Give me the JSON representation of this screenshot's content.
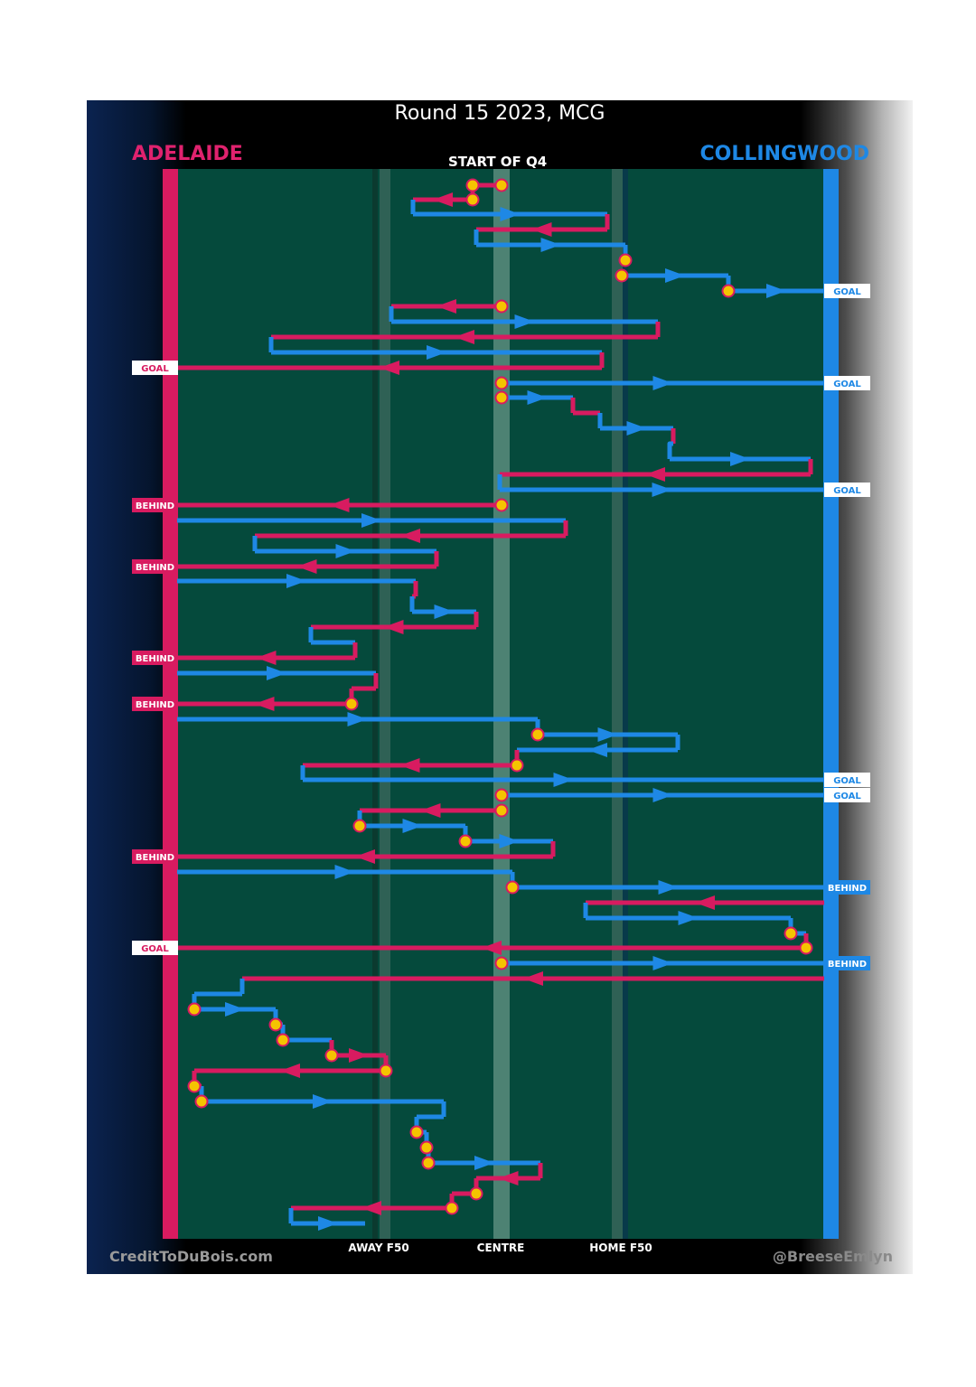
{
  "title": "Round 15 2023, MCG",
  "left_team": "ADELAIDE",
  "right_team": "COLLINGWOOD",
  "start_label": "START OF Q4",
  "footer_left": "CreditToDuBois.com",
  "footer_right": "@BreeseEmlyn",
  "zones": {
    "away": "AWAY F50",
    "centre": "CENTRE",
    "home": "HOME F50"
  },
  "colors": {
    "adelaide": "#d81b60",
    "collingwood": "#1e88e5",
    "field": "#054a3c",
    "marker": "#f5c400"
  },
  "chart_data": {
    "type": "chain-flow",
    "x_axis": "field position",
    "segments": [
      {
        "team": "adelaide",
        "x1": 555,
        "x2": 523,
        "y": 205,
        "connect": true,
        "s": "dot",
        "e": "dot"
      },
      {
        "team": "adelaide",
        "x1": 523,
        "x2": 457,
        "y": 221,
        "connect": true,
        "s": "dot"
      },
      {
        "team": "collingwood",
        "x1": 457,
        "x2": 672,
        "y": 237,
        "connect": true
      },
      {
        "team": "adelaide",
        "x1": 672,
        "x2": 527,
        "y": 254,
        "connect": true
      },
      {
        "team": "collingwood",
        "x1": 527,
        "x2": 692,
        "y": 271,
        "connect": true
      },
      {
        "team": "collingwood",
        "x1": 692,
        "x2": 692,
        "y": 288,
        "connect": true,
        "e": "dot"
      },
      {
        "team": "collingwood",
        "x1": 688,
        "x2": 806,
        "y": 305,
        "connect": false,
        "s": "dot"
      },
      {
        "team": "collingwood",
        "x1": 806,
        "x2": 912,
        "y": 322,
        "connect": true,
        "s": "dot",
        "e": "goal"
      },
      {
        "team": "adelaide",
        "x1": 555,
        "x2": 433,
        "y": 339,
        "connect": false,
        "s": "dot"
      },
      {
        "team": "collingwood",
        "x1": 433,
        "x2": 728,
        "y": 356,
        "connect": true
      },
      {
        "team": "adelaide",
        "x1": 728,
        "x2": 300,
        "y": 373,
        "connect": true
      },
      {
        "team": "collingwood",
        "x1": 300,
        "x2": 666,
        "y": 390,
        "connect": true
      },
      {
        "team": "adelaide",
        "x1": 666,
        "x2": 196,
        "y": 407,
        "connect": true,
        "e": "goal"
      },
      {
        "team": "collingwood",
        "x1": 555,
        "x2": 912,
        "y": 424,
        "connect": false,
        "s": "dot",
        "e": "goal"
      },
      {
        "team": "collingwood",
        "x1": 555,
        "x2": 634,
        "y": 440,
        "connect": false,
        "s": "dot"
      },
      {
        "team": "adelaide",
        "x1": 634,
        "x2": 664,
        "y": 457,
        "connect": true
      },
      {
        "team": "collingwood",
        "x1": 664,
        "x2": 745,
        "y": 474,
        "connect": true
      },
      {
        "team": "adelaide",
        "x1": 745,
        "x2": 745,
        "y": 491,
        "connect": true
      },
      {
        "team": "collingwood",
        "x1": 741,
        "x2": 897,
        "y": 508,
        "connect": true
      },
      {
        "team": "adelaide",
        "x1": 897,
        "x2": 553,
        "y": 525,
        "connect": true
      },
      {
        "team": "collingwood",
        "x1": 553,
        "x2": 912,
        "y": 542,
        "connect": true,
        "e": "goal"
      },
      {
        "team": "adelaide",
        "x1": 555,
        "x2": 196,
        "y": 559,
        "connect": false,
        "s": "dot",
        "e": "behind"
      },
      {
        "team": "collingwood",
        "x1": 196,
        "x2": 626,
        "y": 576,
        "connect": false
      },
      {
        "team": "adelaide",
        "x1": 626,
        "x2": 282,
        "y": 593,
        "connect": true
      },
      {
        "team": "collingwood",
        "x1": 282,
        "x2": 483,
        "y": 610,
        "connect": true
      },
      {
        "team": "adelaide",
        "x1": 483,
        "x2": 196,
        "y": 627,
        "connect": true,
        "e": "behind"
      },
      {
        "team": "collingwood",
        "x1": 196,
        "x2": 460,
        "y": 643,
        "connect": false
      },
      {
        "team": "adelaide",
        "x1": 460,
        "x2": 456,
        "y": 660,
        "connect": true
      },
      {
        "team": "collingwood",
        "x1": 456,
        "x2": 527,
        "y": 677,
        "connect": true
      },
      {
        "team": "adelaide",
        "x1": 527,
        "x2": 344,
        "y": 694,
        "connect": true
      },
      {
        "team": "collingwood",
        "x1": 344,
        "x2": 393,
        "y": 711,
        "connect": true
      },
      {
        "team": "adelaide",
        "x1": 393,
        "x2": 196,
        "y": 728,
        "connect": true,
        "e": "behind"
      },
      {
        "team": "collingwood",
        "x1": 196,
        "x2": 416,
        "y": 745,
        "connect": false
      },
      {
        "team": "adelaide",
        "x1": 416,
        "x2": 389,
        "y": 762,
        "connect": true
      },
      {
        "team": "adelaide",
        "x1": 389,
        "x2": 196,
        "y": 779,
        "connect": true,
        "s": "dot",
        "e": "behind"
      },
      {
        "team": "collingwood",
        "x1": 196,
        "x2": 595,
        "y": 796,
        "connect": false
      },
      {
        "team": "collingwood",
        "x1": 595,
        "x2": 750,
        "y": 813,
        "connect": true,
        "s": "dot"
      },
      {
        "team": "collingwood",
        "x1": 750,
        "x2": 572,
        "y": 830,
        "connect": true
      },
      {
        "team": "adelaide",
        "x1": 572,
        "x2": 335,
        "y": 847,
        "connect": true,
        "s": "dot"
      },
      {
        "team": "collingwood",
        "x1": 335,
        "x2": 912,
        "y": 863,
        "connect": true,
        "e": "goal"
      },
      {
        "team": "collingwood",
        "x1": 555,
        "x2": 912,
        "y": 880,
        "connect": false,
        "s": "dot",
        "e": "goal"
      },
      {
        "team": "adelaide",
        "x1": 555,
        "x2": 398,
        "y": 897,
        "connect": false,
        "s": "dot"
      },
      {
        "team": "collingwood",
        "x1": 398,
        "x2": 515,
        "y": 914,
        "connect": true,
        "s": "dot"
      },
      {
        "team": "collingwood",
        "x1": 515,
        "x2": 612,
        "y": 931,
        "connect": true,
        "s": "dot"
      },
      {
        "team": "adelaide",
        "x1": 612,
        "x2": 196,
        "y": 948,
        "connect": true,
        "e": "behind"
      },
      {
        "team": "collingwood",
        "x1": 196,
        "x2": 567,
        "y": 965,
        "connect": false
      },
      {
        "team": "collingwood",
        "x1": 567,
        "x2": 912,
        "y": 982,
        "connect": true,
        "s": "dot",
        "e": "behind"
      },
      {
        "team": "adelaide",
        "x1": 912,
        "x2": 648,
        "y": 999,
        "connect": false
      },
      {
        "team": "collingwood",
        "x1": 648,
        "x2": 875,
        "y": 1016,
        "connect": true
      },
      {
        "team": "collingwood",
        "x1": 875,
        "x2": 892,
        "y": 1033,
        "connect": true,
        "s": "dot"
      },
      {
        "team": "adelaide",
        "x1": 892,
        "x2": 196,
        "y": 1049,
        "connect": true,
        "s": "dot",
        "e": "goal"
      },
      {
        "team": "collingwood",
        "x1": 555,
        "x2": 912,
        "y": 1066,
        "connect": false,
        "s": "dot",
        "e": "behind"
      },
      {
        "team": "adelaide",
        "x1": 912,
        "x2": 268,
        "y": 1083,
        "connect": false
      },
      {
        "team": "collingwood",
        "x1": 268,
        "x2": 215,
        "y": 1100,
        "connect": true
      },
      {
        "team": "collingwood",
        "x1": 215,
        "x2": 305,
        "y": 1117,
        "connect": true,
        "s": "dot"
      },
      {
        "team": "collingwood",
        "x1": 305,
        "x2": 313,
        "y": 1134,
        "connect": true,
        "s": "dot"
      },
      {
        "team": "collingwood",
        "x1": 313,
        "x2": 367,
        "y": 1151,
        "connect": true,
        "s": "dot"
      },
      {
        "team": "adelaide",
        "x1": 367,
        "x2": 427,
        "y": 1168,
        "connect": true,
        "s": "dot"
      },
      {
        "team": "adelaide",
        "x1": 427,
        "x2": 215,
        "y": 1185,
        "connect": true,
        "s": "dot"
      },
      {
        "team": "adelaide",
        "x1": 215,
        "x2": 223,
        "y": 1202,
        "connect": true,
        "s": "dot"
      },
      {
        "team": "collingwood",
        "x1": 223,
        "x2": 491,
        "y": 1219,
        "connect": true,
        "s": "dot"
      },
      {
        "team": "collingwood",
        "x1": 491,
        "x2": 461,
        "y": 1236,
        "connect": true
      },
      {
        "team": "collingwood",
        "x1": 461,
        "x2": 472,
        "y": 1253,
        "connect": true,
        "s": "dot"
      },
      {
        "team": "collingwood",
        "x1": 472,
        "x2": 474,
        "y": 1270,
        "connect": true,
        "s": "dot"
      },
      {
        "team": "collingwood",
        "x1": 474,
        "x2": 598,
        "y": 1287,
        "connect": true,
        "s": "dot"
      },
      {
        "team": "adelaide",
        "x1": 598,
        "x2": 527,
        "y": 1304,
        "connect": true
      },
      {
        "team": "adelaide",
        "x1": 527,
        "x2": 500,
        "y": 1321,
        "connect": true,
        "s": "dot"
      },
      {
        "team": "adelaide",
        "x1": 500,
        "x2": 322,
        "y": 1337,
        "connect": true,
        "s": "dot"
      },
      {
        "team": "collingwood",
        "x1": 322,
        "x2": 404,
        "y": 1354,
        "connect": true
      }
    ]
  }
}
